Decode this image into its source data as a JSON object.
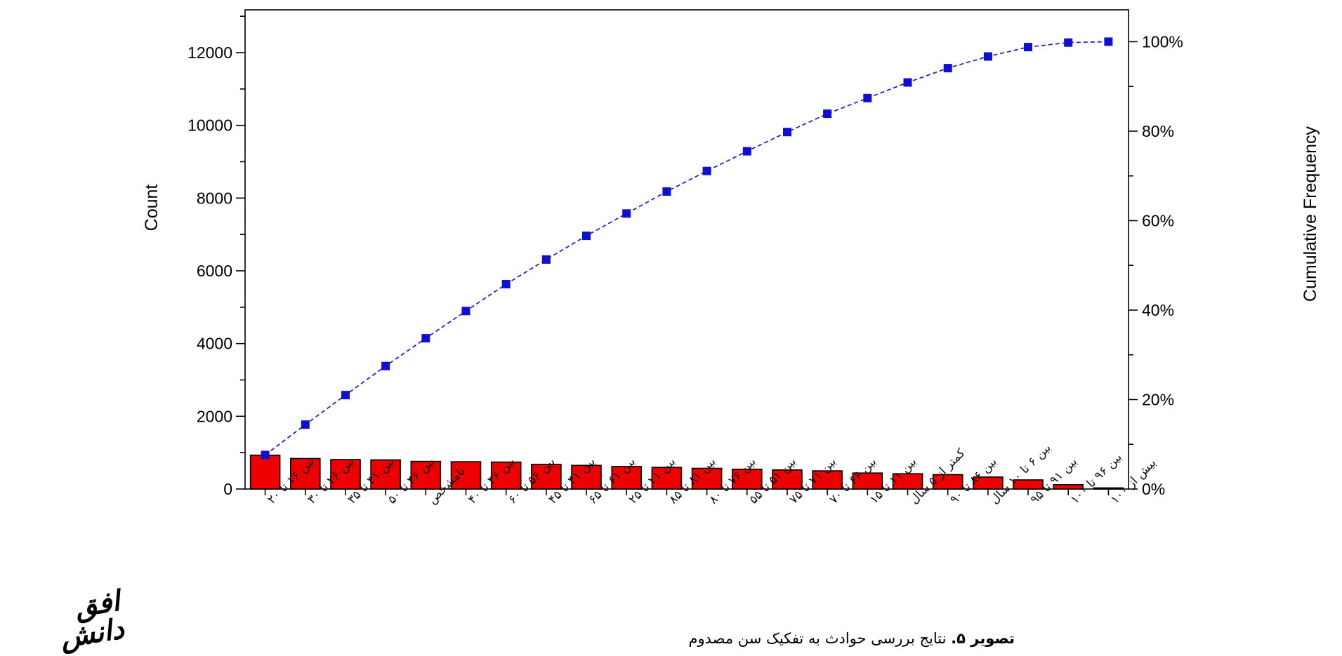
{
  "page": {
    "background": "#ffffff"
  },
  "caption": {
    "figure_label": "تصویر ۵.",
    "text": " نتایج بررسی حوادث به تفکیک سن مصدوم"
  },
  "logo": {
    "text": "افق دانش"
  },
  "chart_data": {
    "type": "bar",
    "subtype": "pareto-with-cumulative-line",
    "title": "",
    "xlabel": "",
    "ylabel_left": "Count",
    "ylabel_right": "Cumulative Frequency",
    "legend": "none",
    "grid": false,
    "categories": [
      "بین ۱۶ تا ۲۰",
      "بین ۲۶ تا ۳۰",
      "بین ۳۱ تا ۳۵",
      "بین ۴۶ تا ۵۰",
      "نامشخص",
      "بین ۳۶ تا ۴۰",
      "بین ۵۶ تا ۶۰",
      "بین ۴۱ تا ۴۵",
      "بین ۶۱ تا ۶۵",
      "بین ۲۱ تا ۲۵",
      "بین ۸۱ تا ۸۵",
      "بین ۷۶ تا ۸۰",
      "بین ۵۱ تا ۵۵",
      "بین ۷۱ تا ۷۵",
      "بین ۶۶ تا ۷۰",
      "بین ۱۱ تا ۱۵",
      "کمتر از ۵ سال",
      "بین ۸۶ تا ۹۰",
      "بین ۶ تا ۱۰ سال",
      "بین ۹۱ تا ۹۵",
      "بین ۹۶ تا ۱۰۰",
      "بیش از ۱۰۰"
    ],
    "series": [
      {
        "name": "Count",
        "type": "bar",
        "values": [
          930,
          840,
          810,
          800,
          760,
          750,
          740,
          680,
          650,
          620,
          595,
          570,
          545,
          525,
          500,
          440,
          420,
          395,
          330,
          250,
          120,
          30
        ]
      },
      {
        "name": "Cumulative Frequency",
        "type": "line-with-square-markers",
        "values_percent": [
          7.6,
          14.4,
          21.0,
          27.5,
          33.7,
          39.8,
          45.8,
          51.3,
          56.6,
          61.6,
          66.5,
          71.1,
          75.5,
          79.8,
          83.9,
          87.4,
          90.9,
          94.1,
          96.7,
          98.8,
          99.8,
          100.0
        ]
      }
    ],
    "total_count": 12300,
    "left_axis": {
      "min": 0,
      "max_visible": 13200,
      "major_ticks": [
        0,
        2000,
        4000,
        6000,
        8000,
        10000,
        12000
      ],
      "minor_step": 1000
    },
    "right_axis": {
      "min_percent": 0,
      "max_percent": 100,
      "major_tick_labels": [
        "0%",
        "20%",
        "40%",
        "60%",
        "80%",
        "100%"
      ],
      "major_ticks_percent": [
        0,
        20,
        40,
        60,
        80,
        100
      ],
      "minor_step_percent": 10
    },
    "colors": {
      "bar_fill": "#ee0000",
      "bar_outline": "#000000",
      "cumulative_line": "#1a1ac8",
      "marker_fill": "#0f0fd0",
      "frame": "#000000",
      "tick_text": "#000000",
      "category_text": "#111111"
    }
  }
}
